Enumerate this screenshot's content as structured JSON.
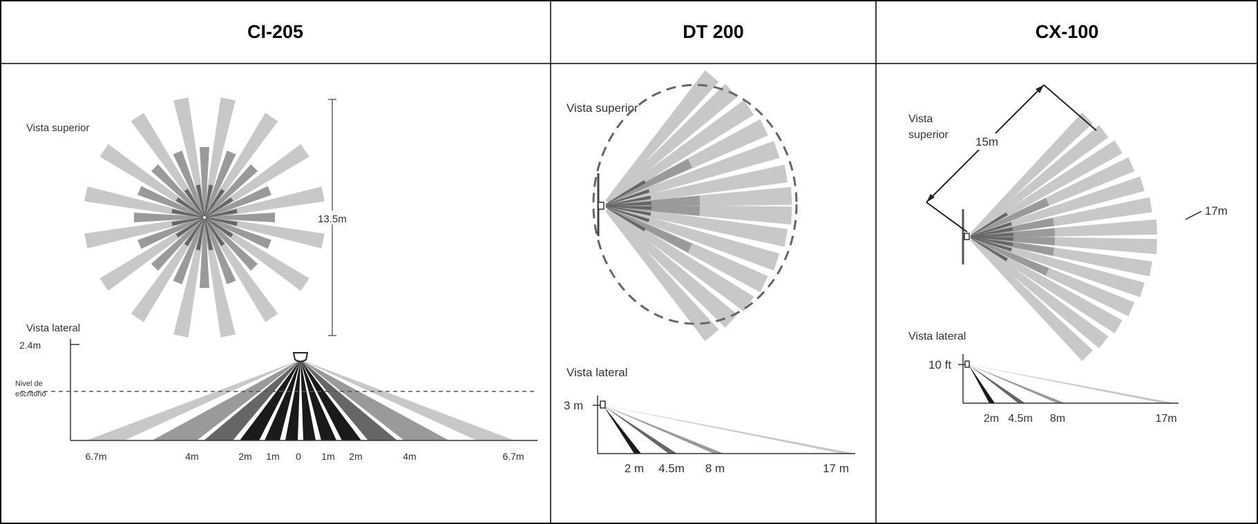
{
  "columns": [
    {
      "title": "CI-205",
      "top_view_label": "Vista superior",
      "height_label": "13.5m",
      "side_view_label": "Vista lateral",
      "mount_height": "2.4m",
      "desk_level": [
        "Nivel de",
        "escritorio"
      ],
      "distance_ticks": [
        "6.7m",
        "4m",
        "2m",
        "1m",
        "0",
        "1m",
        "2m",
        "4m",
        "6.7m"
      ]
    },
    {
      "title": "DT 200",
      "top_view_label": "Vista superior",
      "side_view_label": "Vista lateral",
      "mount_height": "3 m",
      "distance_ticks": [
        "2 m",
        "4.5m",
        "8 m",
        "17 m"
      ]
    },
    {
      "title": "CX-100",
      "top_view_label": [
        "Vista",
        "superior"
      ],
      "width_label": "15m",
      "range_label": "17m",
      "side_view_label": "Vista lateral",
      "mount_height": "10 ft",
      "distance_ticks": [
        "2m",
        "4.5m",
        "8m",
        "17m"
      ]
    }
  ],
  "colors": {
    "light_beam": "#c8c8c8",
    "mid_beam": "#9a9a9a",
    "dark_beam": "#666666",
    "black_beam": "#1a1a1a",
    "line": "#555555"
  }
}
